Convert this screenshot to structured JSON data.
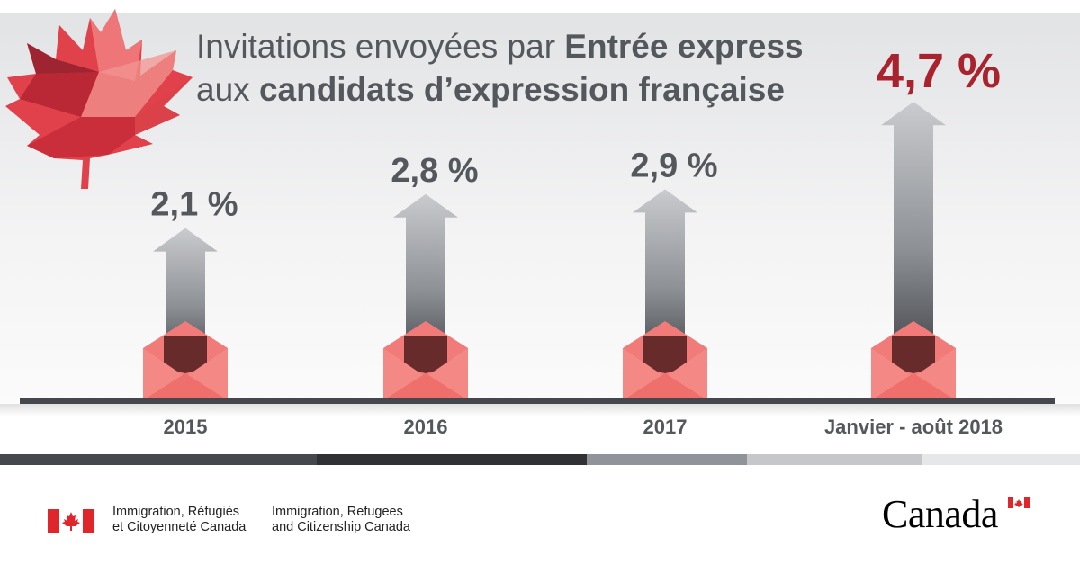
{
  "title": {
    "line1_regular": "Invitations envoyées par ",
    "line1_bold": "Entrée express",
    "line2_regular": "aux ",
    "line2_bold": "candidats d’expression française"
  },
  "chart_data": {
    "type": "bar",
    "title": "Invitations envoyées par Entrée express aux candidats d’expression française",
    "categories": [
      "2015",
      "2016",
      "2017",
      "Janvier - août 2018"
    ],
    "values": [
      2.1,
      2.8,
      2.9,
      4.7
    ],
    "value_labels": [
      "2,1 %",
      "2,8 %",
      "2,9 %",
      "4,7 %"
    ],
    "unit": "%",
    "xlabel": "",
    "ylabel": "",
    "ylim": [
      0,
      5
    ],
    "grid": false,
    "highlight_index": 3
  },
  "colors": {
    "text_gray": "#54585d",
    "highlight_red": "#a8232d",
    "envelope": "#f07b78",
    "envelope_dark": "#5a2424",
    "baseline": "#44474b",
    "flag_red": "#e0262b"
  },
  "footer": {
    "dept_fr_line1": "Immigration, Réfugiés",
    "dept_fr_line2": "et Citoyenneté Canada",
    "dept_en_line1": "Immigration, Refugees",
    "dept_en_line2": "and Citizenship Canada",
    "wordmark": "Canada"
  },
  "icons": [
    "maple-leaf-icon",
    "canada-flag-icon",
    "envelope-icon"
  ]
}
